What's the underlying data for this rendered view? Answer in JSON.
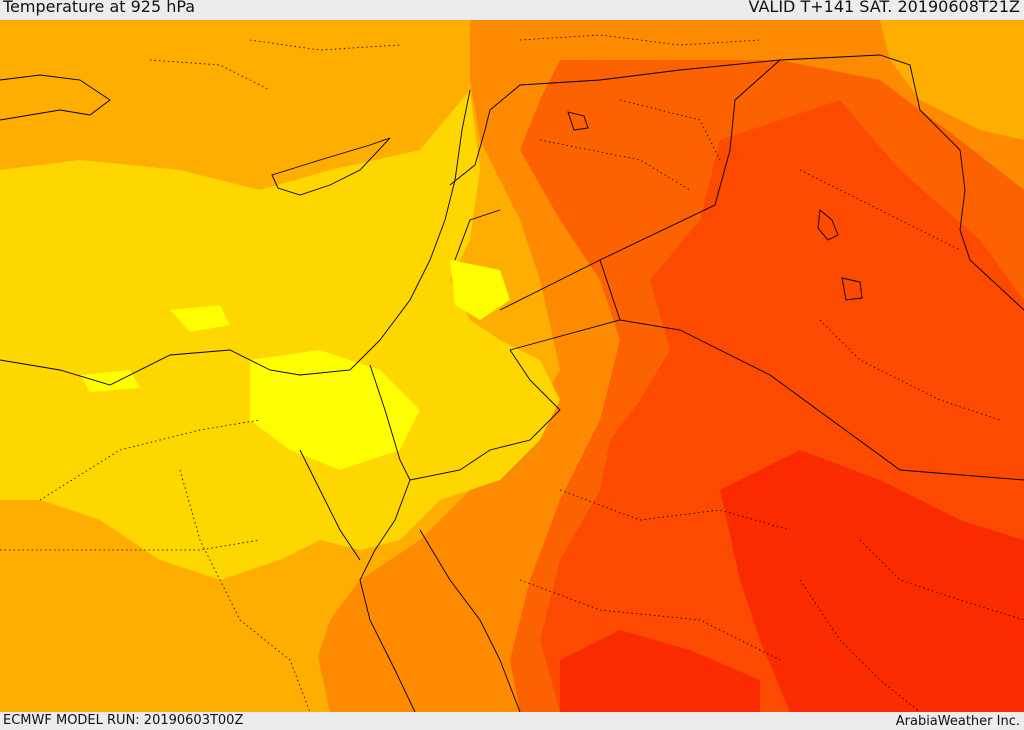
{
  "header": {
    "title": "Temperature at 925 hPa",
    "valid": "VALID T+141 SAT. 20190608T21Z"
  },
  "footer": {
    "model_run": "ECMWF MODEL RUN: 20190603T00Z",
    "credit": "ArabiaWeather Inc."
  },
  "map": {
    "palette": {
      "light_yellow": "#fefe00",
      "yellow": "#fed600",
      "amber": "#fdae00",
      "light_orange": "#fd8a00",
      "orange": "#fc6300",
      "red_orange": "#fc4a00",
      "red": "#fb2b00"
    }
  }
}
